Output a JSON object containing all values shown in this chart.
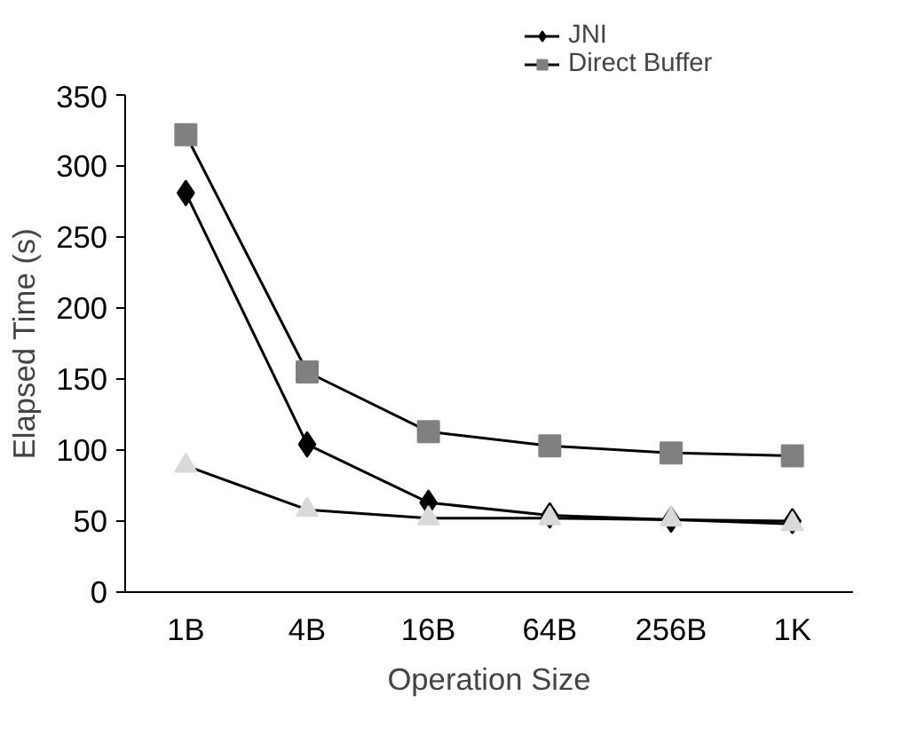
{
  "chart_data": {
    "type": "line",
    "xlabel": "Operation Size",
    "ylabel": "Elapsed Time (s)",
    "categories": [
      "1B",
      "4B",
      "16B",
      "64B",
      "256B",
      "1K"
    ],
    "ylim": [
      0,
      350
    ],
    "yticks": [
      0,
      50,
      100,
      150,
      200,
      250,
      300,
      350
    ],
    "series": [
      {
        "name": "JNI",
        "color": "#000000",
        "marker": "diamond",
        "values": [
          281,
          104,
          63,
          54,
          51,
          50
        ]
      },
      {
        "name": "Direct Buffer",
        "color": "#808080",
        "marker": "square",
        "values": [
          322,
          155,
          113,
          103,
          98,
          96
        ]
      },
      {
        "color": "#d9d9d9",
        "marker": "triangle",
        "values": [
          89,
          58,
          52,
          52,
          51,
          48
        ]
      }
    ],
    "grid": false,
    "legend": "top"
  }
}
